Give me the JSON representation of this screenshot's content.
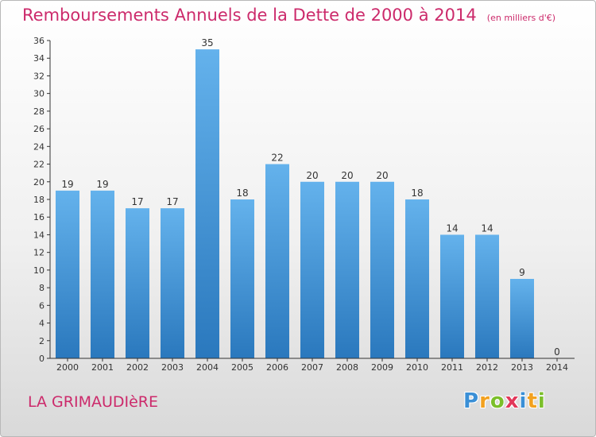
{
  "header": {
    "title": "Remboursements Annuels de la Dette de 2000 à 2014",
    "unit": "(en milliers d'€)"
  },
  "footer": {
    "commune": "LA GRIMAUDIèRE",
    "logo_letters": [
      {
        "char": "P",
        "color": "#3a8fd6"
      },
      {
        "char": "r",
        "color": "#f2a11f"
      },
      {
        "char": "o",
        "color": "#7bbf2a"
      },
      {
        "char": "x",
        "color": "#e2385a"
      },
      {
        "char": "i",
        "color": "#3a8fd6"
      },
      {
        "char": "t",
        "color": "#f2a11f"
      },
      {
        "char": "i",
        "color": "#7bbf2a"
      }
    ]
  },
  "colors": {
    "title": "#cc2a6b",
    "bar_top": "#64b2ec",
    "bar_bottom": "#2a78bd",
    "axis": "#333333"
  },
  "chart_data": {
    "type": "bar",
    "title": "Remboursements Annuels de la Dette de 2000 à 2014",
    "xlabel": "",
    "ylabel": "",
    "categories": [
      "2000",
      "2001",
      "2002",
      "2003",
      "2004",
      "2005",
      "2006",
      "2007",
      "2008",
      "2009",
      "2010",
      "2011",
      "2012",
      "2013",
      "2014"
    ],
    "values": [
      19,
      19,
      17,
      17,
      35,
      18,
      22,
      20,
      20,
      20,
      18,
      14,
      14,
      9,
      0
    ],
    "ylim": [
      0,
      36
    ],
    "yticks": [
      0,
      2,
      4,
      6,
      8,
      10,
      12,
      14,
      16,
      18,
      20,
      22,
      24,
      26,
      28,
      30,
      32,
      34,
      36
    ],
    "grid": false,
    "legend": "none"
  }
}
